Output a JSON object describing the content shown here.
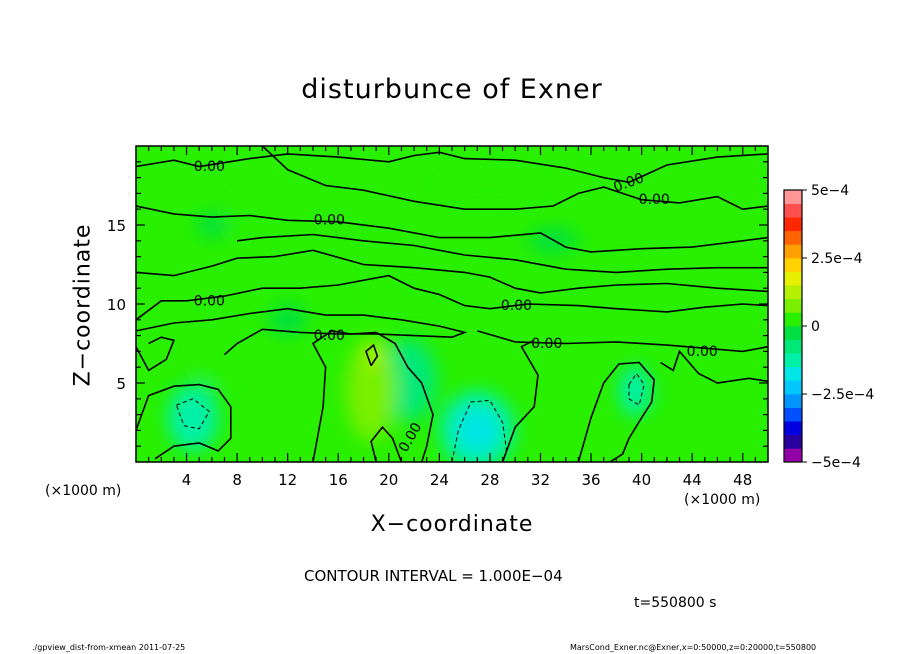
{
  "chart_data": {
    "type": "heatmap",
    "subtype": "filled contour",
    "title": "disturbunce of Exner",
    "xlabel": "X−coordinate",
    "ylabel": "Z−coordinate",
    "x_unit_left": "(×1000 m)",
    "x_unit_right": "(×1000 m)",
    "xlim": [
      0,
      50
    ],
    "ylim": [
      0,
      20
    ],
    "xticks": [
      4,
      8,
      12,
      16,
      20,
      24,
      28,
      32,
      36,
      40,
      44,
      48
    ],
    "yticks": [
      5,
      10,
      15
    ],
    "colorbar": {
      "range": [
        -0.0005,
        0.0005
      ],
      "tick_values": [
        0.0005,
        0.00025,
        0,
        -0.00025,
        -0.0005
      ],
      "tick_labels": [
        "5e−4",
        "2.5e−4",
        "0",
        "−2.5e−4",
        "−5e−4"
      ],
      "colors": [
        "#9400a8",
        "#2800a0",
        "#0000e0",
        "#0050ff",
        "#0096ff",
        "#00c8ff",
        "#00e6e6",
        "#00f0a8",
        "#00e878",
        "#00e040",
        "#28f000",
        "#78f000",
        "#b4f000",
        "#e6f000",
        "#ffd200",
        "#ffa000",
        "#ff6400",
        "#ff2800",
        "#ff5050",
        "#ff9696"
      ]
    },
    "contour_interval": "1.000E−04",
    "contour_labels": [
      {
        "text": "0.00",
        "x": 5.8,
        "z": 18.8
      },
      {
        "text": "0.00",
        "x": 15.3,
        "z": 15.4
      },
      {
        "text": "0.00",
        "x": 39.1,
        "z": 17.8
      },
      {
        "text": "0.00",
        "x": 41.0,
        "z": 16.7
      },
      {
        "text": "0.00",
        "x": 5.8,
        "z": 10.3
      },
      {
        "text": "0.00",
        "x": 15.3,
        "z": 8.1
      },
      {
        "text": "0.00",
        "x": 30.1,
        "z": 10.0
      },
      {
        "text": "0.00",
        "x": 32.5,
        "z": 7.6
      },
      {
        "text": "0.00",
        "x": 44.8,
        "z": 7.1
      },
      {
        "text": "0.00",
        "x": 22.0,
        "z": 1.8
      }
    ],
    "features": [
      {
        "x": 4.5,
        "z": 2.8,
        "rx": 2.0,
        "rz": 2.1,
        "v": -0.00013
      },
      {
        "x": 27.0,
        "z": 2.0,
        "rx": 3.0,
        "rz": 2.5,
        "v": -0.00014
      },
      {
        "x": 39.5,
        "z": 4.5,
        "rx": 1.3,
        "rz": 1.6,
        "v": -0.00011
      },
      {
        "x": 21.5,
        "z": 5.2,
        "rx": 2.3,
        "rz": 2.6,
        "v": -6e-05
      },
      {
        "x": 18.6,
        "z": 4.5,
        "rx": 2.0,
        "rz": 3.2,
        "v": 6e-05
      },
      {
        "x": 18.8,
        "z": 6.9,
        "rx": 0.6,
        "rz": 0.9,
        "v": 0.00012
      },
      {
        "x": 9.0,
        "z": 15.5,
        "rx": 1.8,
        "rz": 1.6,
        "v": 4e-05
      },
      {
        "x": 28.0,
        "z": 17.5,
        "rx": 4.0,
        "rz": 1.0,
        "v": 4e-05
      },
      {
        "x": 38.5,
        "z": 13.0,
        "rx": 3.0,
        "rz": 1.0,
        "v": 4e-05
      },
      {
        "x": 6.5,
        "z": 7.0,
        "rx": 2.0,
        "rz": 2.3,
        "v": 4e-05
      },
      {
        "x": 22.0,
        "z": 10.5,
        "rx": 3.0,
        "rz": 1.0,
        "v": 4e-05
      },
      {
        "x": 46.0,
        "z": 3.0,
        "rx": 3.0,
        "rz": 2.0,
        "v": 3e-05
      },
      {
        "x": 6.0,
        "z": 15.0,
        "rx": 1.2,
        "rz": 0.8,
        "v": -4e-05
      },
      {
        "x": 33.0,
        "z": 14.0,
        "rx": 2.0,
        "rz": 0.8,
        "v": -3e-05
      },
      {
        "x": 12.0,
        "z": 9.0,
        "rx": 1.5,
        "rz": 1.0,
        "v": -3e-05
      }
    ],
    "grid": false,
    "legend": "colorbar at right"
  },
  "annotations": {
    "time": "t=550800 s",
    "footer_left": "./gpview_dist-from-xmean  2011-07-25",
    "footer_right": "MarsCond_Exner.nc@Exner,x=0:50000,z=0:20000,t=550800",
    "contour_text": "CONTOUR INTERVAL = 1.000E−04"
  }
}
